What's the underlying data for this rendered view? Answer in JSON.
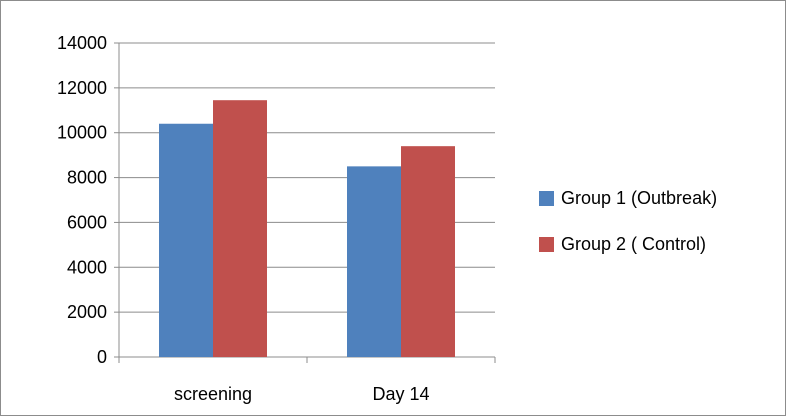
{
  "chart_data": {
    "type": "bar",
    "title": "",
    "xlabel": "",
    "ylabel": "",
    "categories": [
      "screening",
      "Day 14"
    ],
    "series": [
      {
        "name": "Group 1 (Outbreak)",
        "values": [
          10400,
          8500
        ],
        "color": "#4F81BD"
      },
      {
        "name": "Group 2 ( Control)",
        "values": [
          11450,
          9400
        ],
        "color": "#C0504D"
      }
    ],
    "ylim": [
      0,
      14000
    ],
    "yticks": [
      0,
      2000,
      4000,
      6000,
      8000,
      10000,
      12000,
      14000
    ],
    "ytick_labels": [
      "0",
      "2000",
      "4000",
      "6000",
      "8000",
      "10000",
      "12000",
      "14000"
    ],
    "grid": true,
    "legend_position": "right"
  }
}
